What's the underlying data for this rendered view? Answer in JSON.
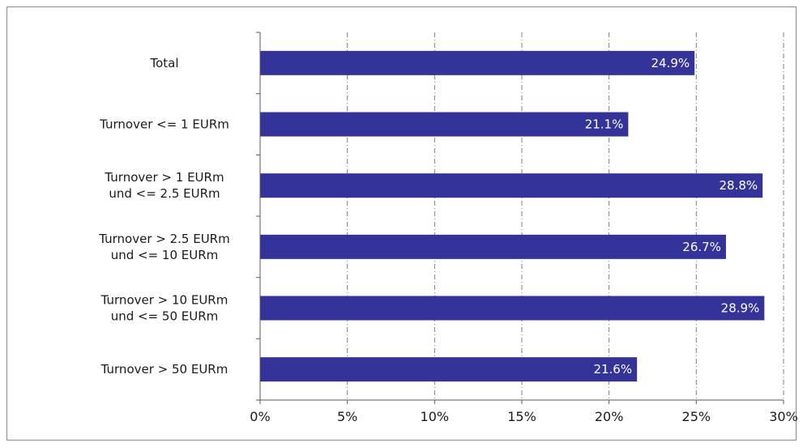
{
  "chart_data": {
    "type": "bar",
    "orientation": "horizontal",
    "categories": [
      [
        "Total"
      ],
      [
        "Turnover <= 1 EURm"
      ],
      [
        "Turnover > 1 EURm",
        "und <= 2.5 EURm"
      ],
      [
        "Turnover > 2.5 EURm",
        "und <= 10 EURm"
      ],
      [
        "Turnover > 10 EURm",
        "und <= 50 EURm"
      ],
      [
        "Turnover > 50 EURm"
      ]
    ],
    "values": [
      24.9,
      21.1,
      28.8,
      26.7,
      28.9,
      21.6
    ],
    "data_labels": [
      "24.9%",
      "21.1%",
      "28.8%",
      "26.7%",
      "28.9%",
      "21.6%"
    ],
    "xlim": [
      0,
      30
    ],
    "x_ticks": [
      0,
      5,
      10,
      15,
      20,
      25,
      30
    ],
    "x_tick_labels": [
      "0%",
      "5%",
      "10%",
      "15%",
      "20%",
      "25%",
      "30%"
    ],
    "grid": "vertical-dashed",
    "bar_color": "#333399",
    "title": "",
    "xlabel": "",
    "ylabel": ""
  }
}
